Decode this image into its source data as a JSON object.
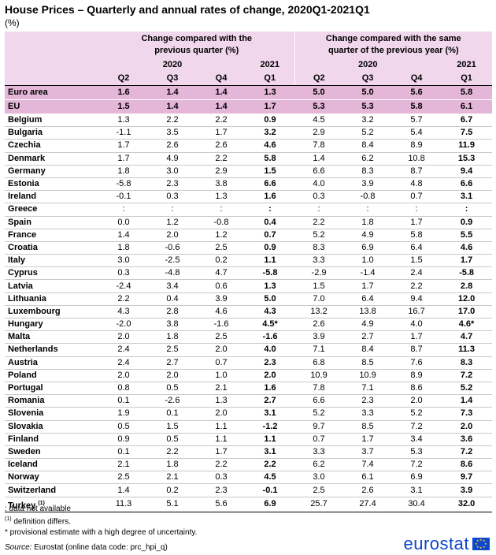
{
  "title": "House Prices – Quarterly and annual rates of change, 2020Q1-2021Q1",
  "unit": "(%)",
  "header": {
    "group1": "Change compared with the previous quarter (%)",
    "group2": "Change compared with the same quarter of the previous year (%)",
    "year2020": "2020",
    "year2021": "2021",
    "quarters": [
      "Q2",
      "Q3",
      "Q4",
      "Q1"
    ]
  },
  "rows": [
    {
      "name": "Euro area",
      "vals": [
        "1.6",
        "1.4",
        "1.4",
        "1.3",
        "5.0",
        "5.0",
        "5.6",
        "5.8"
      ]
    },
    {
      "name": "EU",
      "vals": [
        "1.5",
        "1.4",
        "1.4",
        "1.7",
        "5.3",
        "5.3",
        "5.8",
        "6.1"
      ]
    },
    {
      "name": "Belgium",
      "vals": [
        "1.3",
        "2.2",
        "2.2",
        "0.9",
        "4.5",
        "3.2",
        "5.7",
        "6.7"
      ]
    },
    {
      "name": "Bulgaria",
      "vals": [
        "-1.1",
        "3.5",
        "1.7",
        "3.2",
        "2.9",
        "5.2",
        "5.4",
        "7.5"
      ]
    },
    {
      "name": "Czechia",
      "vals": [
        "1.7",
        "2.6",
        "2.6",
        "4.6",
        "7.8",
        "8.4",
        "8.9",
        "11.9"
      ]
    },
    {
      "name": "Denmark",
      "vals": [
        "1.7",
        "4.9",
        "2.2",
        "5.8",
        "1.4",
        "6.2",
        "10.8",
        "15.3"
      ]
    },
    {
      "name": "Germany",
      "vals": [
        "1.8",
        "3.0",
        "2.9",
        "1.5",
        "6.6",
        "8.3",
        "8.7",
        "9.4"
      ]
    },
    {
      "name": "Estonia",
      "vals": [
        "-5.8",
        "2.3",
        "3.8",
        "6.6",
        "4.0",
        "3.9",
        "4.8",
        "6.6"
      ]
    },
    {
      "name": "Ireland",
      "vals": [
        "-0.1",
        "0.3",
        "1.3",
        "1.6",
        "0.3",
        "-0.8",
        "0.7",
        "3.1"
      ]
    },
    {
      "name": "Greece",
      "vals": [
        ":",
        ":",
        ":",
        ":",
        ":",
        ":",
        ":",
        ":"
      ]
    },
    {
      "name": "Spain",
      "vals": [
        "0.0",
        "1.2",
        "-0.8",
        "0.4",
        "2.2",
        "1.8",
        "1.7",
        "0.9"
      ]
    },
    {
      "name": "France",
      "vals": [
        "1.4",
        "2.0",
        "1.2",
        "0.7",
        "5.2",
        "4.9",
        "5.8",
        "5.5"
      ]
    },
    {
      "name": "Croatia",
      "vals": [
        "1.8",
        "-0.6",
        "2.5",
        "0.9",
        "8.3",
        "6.9",
        "6.4",
        "4.6"
      ]
    },
    {
      "name": "Italy",
      "vals": [
        "3.0",
        "-2.5",
        "0.2",
        "1.1",
        "3.3",
        "1.0",
        "1.5",
        "1.7"
      ]
    },
    {
      "name": "Cyprus",
      "vals": [
        "0.3",
        "-4.8",
        "4.7",
        "-5.8",
        "-2.9",
        "-1.4",
        "2.4",
        "-5.8"
      ]
    },
    {
      "name": "Latvia",
      "vals": [
        "-2.4",
        "3.4",
        "0.6",
        "1.3",
        "1.5",
        "1.7",
        "2.2",
        "2.8"
      ]
    },
    {
      "name": "Lithuania",
      "vals": [
        "2.2",
        "0.4",
        "3.9",
        "5.0",
        "7.0",
        "6.4",
        "9.4",
        "12.0"
      ]
    },
    {
      "name": "Luxembourg",
      "vals": [
        "4.3",
        "2.8",
        "4.6",
        "4.3",
        "13.2",
        "13.8",
        "16.7",
        "17.0"
      ]
    },
    {
      "name": "Hungary",
      "vals": [
        "-2.0",
        "3.8",
        "-1.6",
        "4.5*",
        "2.6",
        "4.9",
        "4.0",
        "4.6*"
      ]
    },
    {
      "name": "Malta",
      "vals": [
        "2.0",
        "1.8",
        "2.5",
        "-1.6",
        "3.9",
        "2.7",
        "1.7",
        "4.7"
      ]
    },
    {
      "name": "Netherlands",
      "vals": [
        "2.4",
        "2.5",
        "2.0",
        "4.0",
        "7.1",
        "8.4",
        "8.7",
        "11.3"
      ]
    },
    {
      "name": "Austria",
      "vals": [
        "2.4",
        "2.7",
        "0.7",
        "2.3",
        "6.8",
        "8.5",
        "7.6",
        "8.3"
      ]
    },
    {
      "name": "Poland",
      "vals": [
        "2.0",
        "2.0",
        "1.0",
        "2.0",
        "10.9",
        "10.9",
        "8.9",
        "7.2"
      ]
    },
    {
      "name": "Portugal",
      "vals": [
        "0.8",
        "0.5",
        "2.1",
        "1.6",
        "7.8",
        "7.1",
        "8.6",
        "5.2"
      ]
    },
    {
      "name": "Romania",
      "vals": [
        "0.1",
        "-2.6",
        "1.3",
        "2.7",
        "6.6",
        "2.3",
        "2.0",
        "1.4"
      ]
    },
    {
      "name": "Slovenia",
      "vals": [
        "1.9",
        "0.1",
        "2.0",
        "3.1",
        "5.2",
        "3.3",
        "5.2",
        "7.3"
      ]
    },
    {
      "name": "Slovakia",
      "vals": [
        "0.5",
        "1.5",
        "1.1",
        "-1.2",
        "9.7",
        "8.5",
        "7.2",
        "2.0"
      ]
    },
    {
      "name": "Finland",
      "vals": [
        "0.9",
        "0.5",
        "1.1",
        "1.1",
        "0.7",
        "1.7",
        "3.4",
        "3.6"
      ]
    },
    {
      "name": "Sweden",
      "vals": [
        "0.1",
        "2.2",
        "1.7",
        "3.1",
        "3.3",
        "3.7",
        "5.3",
        "7.2"
      ]
    },
    {
      "name": "Iceland",
      "vals": [
        "2.1",
        "1.8",
        "2.2",
        "2.2",
        "6.2",
        "7.4",
        "7.2",
        "8.6"
      ]
    },
    {
      "name": "Norway",
      "vals": [
        "2.5",
        "2.1",
        "0.3",
        "4.5",
        "3.0",
        "6.1",
        "6.9",
        "9.7"
      ]
    },
    {
      "name": "Switzerland",
      "vals": [
        "1.4",
        "0.2",
        "2.3",
        "-0.1",
        "2.5",
        "2.6",
        "3.1",
        "3.9"
      ]
    },
    {
      "name": "Turkey",
      "sup": "(1)",
      "vals": [
        "11.3",
        "5.1",
        "5.6",
        "6.9",
        "25.7",
        "27.4",
        "30.4",
        "32.0"
      ]
    }
  ],
  "footnotes": {
    "na": ":  data not available",
    "def_marker": "(1)",
    "def": " definition differs.",
    "prov": "* provisional estimate with a high degree of uncertainty."
  },
  "source": {
    "label": "Source:",
    "text": " Eurostat (online data code: prc_hpi_q)"
  },
  "logo": {
    "text": "eurostat",
    "color": "#0e47cb"
  },
  "colors": {
    "header_bg": "#f1d7ec",
    "aggregate_bg": "#e4b6d8"
  }
}
